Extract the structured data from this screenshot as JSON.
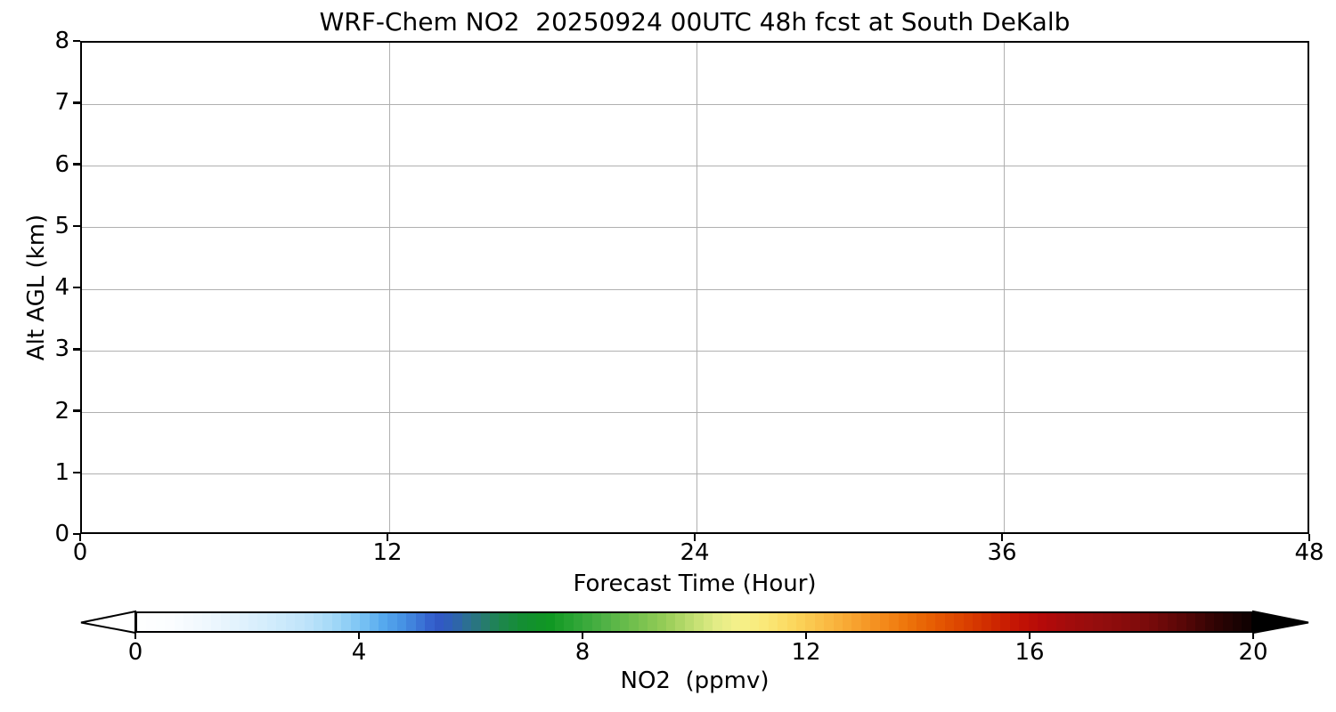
{
  "title": "WRF-Chem NO2  20250924 00UTC 48h fcst at South DeKalb",
  "chart_data": {
    "type": "heatmap",
    "title": "WRF-Chem NO2  20250924 00UTC 48h fcst at South DeKalb",
    "xlabel": "Forecast Time (Hour)",
    "ylabel": "Alt AGL (km)",
    "xlim": [
      0,
      48
    ],
    "ylim": [
      0,
      8
    ],
    "x_ticks": [
      0,
      12,
      24,
      36,
      48
    ],
    "y_ticks": [
      0,
      1,
      2,
      3,
      4,
      5,
      6,
      7,
      8
    ],
    "grid": true,
    "grid_color": "#b0b0b0",
    "field": {
      "appearance": "uniform white across entire time-height cross-section",
      "implied_value_ppmv": 0
    },
    "colorbar": {
      "label": "NO2  (ppmv)",
      "ticks": [
        0,
        4,
        8,
        12,
        16,
        20
      ],
      "range": [
        0,
        20
      ],
      "orientation": "horizontal",
      "extend": "both",
      "levels": 120,
      "under_color": "#ffffff",
      "over_color": "#000000",
      "stops": [
        [
          0.0,
          "#ffffff"
        ],
        [
          0.03,
          "#fbfdff"
        ],
        [
          0.06,
          "#f0f8fe"
        ],
        [
          0.09,
          "#e2f2fd"
        ],
        [
          0.12,
          "#d2ecfc"
        ],
        [
          0.15,
          "#bfe4fa"
        ],
        [
          0.175,
          "#a5d9f8"
        ],
        [
          0.2,
          "#7cc4f4"
        ],
        [
          0.22,
          "#57aaee"
        ],
        [
          0.24,
          "#4590e2"
        ],
        [
          0.255,
          "#3a72d5"
        ],
        [
          0.268,
          "#3158c9"
        ],
        [
          0.282,
          "#2f5fb7"
        ],
        [
          0.295,
          "#2c6e95"
        ],
        [
          0.31,
          "#277a72"
        ],
        [
          0.325,
          "#1e854f"
        ],
        [
          0.345,
          "#148e34"
        ],
        [
          0.37,
          "#0f9722"
        ],
        [
          0.395,
          "#2fa636"
        ],
        [
          0.42,
          "#50b246"
        ],
        [
          0.45,
          "#76c14e"
        ],
        [
          0.475,
          "#98cd58"
        ],
        [
          0.5,
          "#c2df72"
        ],
        [
          0.52,
          "#e2ec86"
        ],
        [
          0.54,
          "#f5f18b"
        ],
        [
          0.565,
          "#fae877"
        ],
        [
          0.59,
          "#fbd65c"
        ],
        [
          0.615,
          "#fabf47"
        ],
        [
          0.64,
          "#f8a732"
        ],
        [
          0.665,
          "#f48f1f"
        ],
        [
          0.69,
          "#ee760b"
        ],
        [
          0.715,
          "#e65c02"
        ],
        [
          0.74,
          "#dc4400"
        ],
        [
          0.765,
          "#d02b00"
        ],
        [
          0.79,
          "#c41404"
        ],
        [
          0.815,
          "#b30909"
        ],
        [
          0.84,
          "#a00c0c"
        ],
        [
          0.865,
          "#930d0d"
        ],
        [
          0.89,
          "#860c0c"
        ],
        [
          0.915,
          "#730a0a"
        ],
        [
          0.94,
          "#570707"
        ],
        [
          0.965,
          "#330404"
        ],
        [
          1.0,
          "#0d0101"
        ]
      ]
    },
    "axis_color": "#000000",
    "background_color": "#ffffff"
  }
}
